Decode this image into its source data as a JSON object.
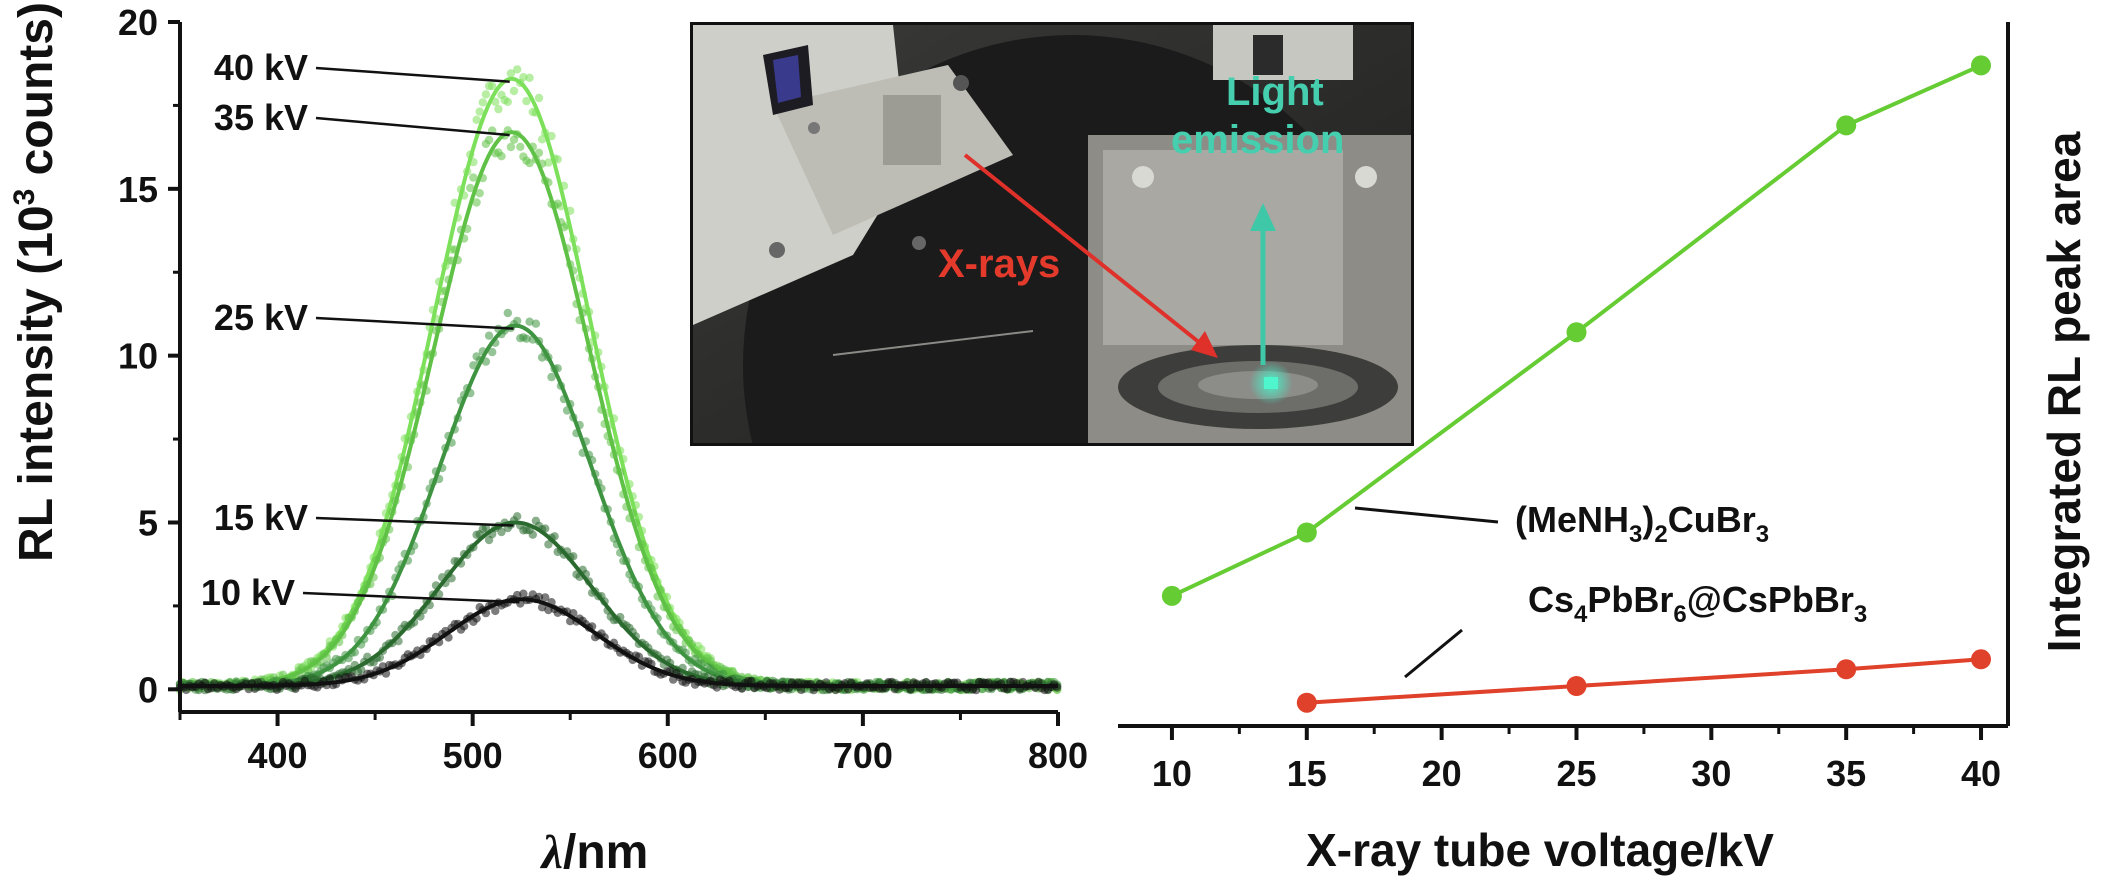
{
  "left_panel": {
    "ylabel_pre": "RL intensity (10",
    "ylabel_sup": "3",
    "ylabel_post": " counts)",
    "xlabel_italic": "λ",
    "xlabel_rest": "/nm"
  },
  "right_panel": {
    "ylabel": "Integrated RL peak area",
    "xlabel": "X-ray tube voltage/kV"
  },
  "inset": {
    "xrays_label": "X-rays",
    "light_label_1": "Light",
    "light_label_2": "emission"
  },
  "colors": {
    "kv40": "#7ce05a",
    "kv35": "#5fc145",
    "kv25": "#3e9440",
    "kv15": "#2a6a2e",
    "kv10": "#111111",
    "green_series": "#66cc33",
    "red_series": "#e0412a",
    "xray_arrow": "#e0302a",
    "emission_arrow": "#3ec8a8"
  },
  "chart_data": [
    {
      "type": "line",
      "title": "",
      "xlabel": "λ/nm",
      "ylabel": "RL intensity (10^3 counts)",
      "xlim": [
        350,
        800
      ],
      "ylim": [
        -0.5,
        20
      ],
      "xticks": [
        400,
        500,
        600,
        700,
        800
      ],
      "yticks": [
        0,
        5,
        10,
        15,
        20
      ],
      "series": [
        {
          "name": "40 kV",
          "peak_x": 520,
          "peak_y": 18.2,
          "width": 40,
          "baseline": 0.1,
          "color_key": "kv40"
        },
        {
          "name": "35 kV",
          "peak_x": 520,
          "peak_y": 16.6,
          "width": 40,
          "baseline": 0.1,
          "color_key": "kv35"
        },
        {
          "name": "25 kV",
          "peak_x": 522,
          "peak_y": 10.8,
          "width": 39,
          "baseline": 0.1,
          "color_key": "kv25"
        },
        {
          "name": "15 kV",
          "peak_x": 522,
          "peak_y": 4.9,
          "width": 39,
          "baseline": 0.1,
          "color_key": "kv15"
        },
        {
          "name": "10 kV",
          "peak_x": 525,
          "peak_y": 2.6,
          "width": 38,
          "baseline": 0.1,
          "color_key": "kv10"
        }
      ]
    },
    {
      "type": "line",
      "title": "",
      "xlabel": "X-ray tube voltage/kV",
      "ylabel": "Integrated RL peak area",
      "xlim": [
        8,
        41
      ],
      "xticks": [
        10,
        15,
        20,
        25,
        30,
        35,
        40
      ],
      "ylim": [
        -0.5,
        20
      ],
      "series": [
        {
          "name": "(MeNH3)2CuBr3",
          "label_main": "(MeNH",
          "label_sub1": "3",
          "label_mid": ")",
          "label_sub2": "2",
          "label_end": "CuBr",
          "label_sub3": "3",
          "x": [
            10,
            15,
            25,
            35,
            40
          ],
          "y": [
            2.8,
            4.7,
            10.7,
            16.9,
            18.7
          ],
          "color_key": "green_series"
        },
        {
          "name": "Cs4PbBr6@CsPbBr3",
          "label_a": "Cs",
          "label_sub1": "4",
          "label_b": "PbBr",
          "label_sub2": "6",
          "label_c": "@CsPbBr",
          "label_sub3": "3",
          "x": [
            15,
            25,
            35,
            40
          ],
          "y": [
            -0.4,
            0.1,
            0.6,
            0.9
          ],
          "color_key": "red_series"
        }
      ]
    }
  ]
}
